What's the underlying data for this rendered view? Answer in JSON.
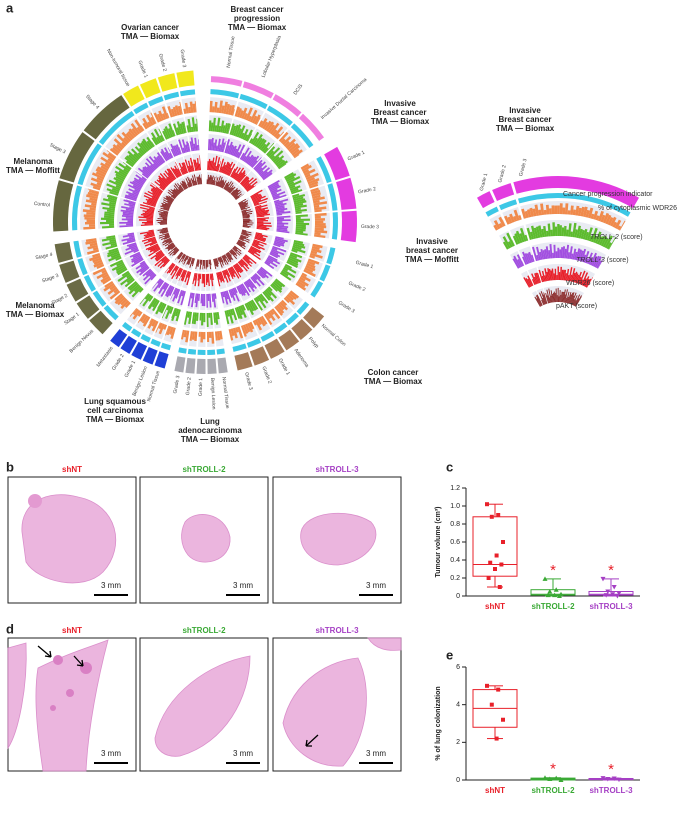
{
  "panel_labels": [
    "a",
    "b",
    "c",
    "d",
    "e"
  ],
  "circos": {
    "groups": [
      {
        "title": [
          "Ovarian cancer",
          "TMA — Biomax"
        ],
        "segments": [
          "Non-tumoral tissue",
          "Grade 1",
          "Grade 2",
          "Grade 3"
        ]
      },
      {
        "title": [
          "Breast cancer",
          "progression",
          "TMA — Biomax"
        ],
        "segments": [
          "Normal Tissue",
          "Lobular Hyperplasia",
          "DCIS",
          "Invasive Ductal Carcinoma"
        ]
      },
      {
        "title": [
          "Invasive",
          "Breast cancer",
          "TMA — Biomax"
        ],
        "segments": [
          "Grade 1",
          "Grade 2",
          "Grade 3"
        ]
      },
      {
        "title": [
          "Invasive",
          "breast cancer",
          "TMA — Moffitt"
        ],
        "segments": [
          "Grade 1",
          "Grade 2",
          "Grade 3"
        ]
      },
      {
        "title": [
          "Colon cancer",
          "TMA — Biomax"
        ],
        "segments": [
          "Normal Colon",
          "Polyp",
          "Adenoma",
          "Grade 1",
          "Grade 2",
          "Grade 3"
        ]
      },
      {
        "title": [
          "Lung",
          "adenocarcinoma",
          "TMA — Biomax"
        ],
        "segments": [
          "Normal Tissue",
          "Benign Lesion",
          "Grade 1",
          "Grade 2",
          "Grade 3"
        ]
      },
      {
        "title": [
          "Lung squamous",
          "cell carcinoma",
          "TMA — Biomax"
        ],
        "segments": [
          "Normal Tissue",
          "Benign Lesion",
          "Grade 1",
          "Grade 2",
          "Metastasis"
        ]
      },
      {
        "title": [
          "Melanoma",
          "TMA — Biomax"
        ],
        "segments": [
          "Benign Nevus",
          "Stage 1",
          "Stage 2",
          "Stage 3",
          "Stage 4"
        ]
      },
      {
        "title": [
          "Melanoma",
          "TMA — Moffitt"
        ],
        "segments": [
          "Control",
          "Stage 3",
          "Stage 4"
        ]
      }
    ],
    "legend": {
      "title": [
        "Invasive",
        "Breast cancer",
        "TMA — Biomax"
      ],
      "segments": [
        "Grade 1",
        "Grade 2",
        "Grade 3"
      ],
      "tracks": [
        "Cancer progression indicator",
        "% of cytoplasmic WDR26",
        "TROLL-2",
        "TROLL-3",
        "WDR26",
        "pAKT"
      ],
      "track_suffix": " (score)"
    }
  },
  "panel_b": {
    "samples": [
      "shNT",
      "shTROLL-2",
      "shTROLL-3"
    ],
    "scale_bar": "3 mm"
  },
  "panel_d": {
    "samples": [
      "shNT",
      "shTROLL-2",
      "shTROLL-3"
    ],
    "scale_bar": "3 mm"
  },
  "chart_data": [
    {
      "type": "box",
      "ylabel": "Tumour volume (cm³)",
      "categories": [
        "shNT",
        "shTROLL-2",
        "shTROLL-3"
      ],
      "colors": [
        "#e8202a",
        "#3aa935",
        "#a53fc4"
      ],
      "boxes": [
        {
          "min": 0.1,
          "q1": 0.22,
          "median": 0.35,
          "q3": 0.88,
          "max": 1.02,
          "points": [
            1.02,
            0.9,
            0.88,
            0.6,
            0.45,
            0.37,
            0.35,
            0.3,
            0.2,
            0.1
          ]
        },
        {
          "min": 0,
          "q1": 0.01,
          "median": 0.02,
          "q3": 0.07,
          "max": 0.19,
          "points": [
            0.19,
            0.07,
            0.05,
            0.02,
            0.01,
            0.01,
            0
          ]
        },
        {
          "min": 0,
          "q1": 0.01,
          "median": 0.02,
          "q3": 0.05,
          "max": 0.19,
          "points": [
            0.19,
            0.1,
            0.05,
            0.03,
            0.02,
            0.01,
            0
          ]
        }
      ],
      "annotations": [
        null,
        "*",
        "*"
      ],
      "ylim": [
        0,
        1.2
      ],
      "yticks": [
        0,
        0.2,
        0.4,
        0.6,
        0.8,
        {
          "value": 1,
          "label": "1.0"
        },
        1.2
      ]
    },
    {
      "type": "box",
      "ylabel": "% of lung colonization",
      "categories": [
        "shNT",
        "shTROLL-2",
        "shTROLL-3"
      ],
      "colors": [
        "#e8202a",
        "#3aa935",
        "#a53fc4"
      ],
      "boxes": [
        {
          "min": 2.2,
          "q1": 2.8,
          "median": 3.8,
          "q3": 4.8,
          "max": 5.0,
          "points": [
            5.0,
            4.8,
            4.0,
            3.2,
            2.2
          ]
        },
        {
          "min": 0,
          "q1": 0,
          "median": 0.05,
          "q3": 0.1,
          "max": 0.12,
          "points": [
            0.12,
            0.1,
            0.05,
            0
          ]
        },
        {
          "min": 0,
          "q1": 0.02,
          "median": 0.05,
          "q3": 0.08,
          "max": 0.1,
          "points": [
            0.1,
            0.08,
            0.05,
            0.02
          ]
        }
      ],
      "annotations": [
        null,
        "*",
        "*"
      ],
      "ylim": [
        0,
        6
      ],
      "yticks": [
        0,
        2,
        4,
        6
      ]
    }
  ]
}
